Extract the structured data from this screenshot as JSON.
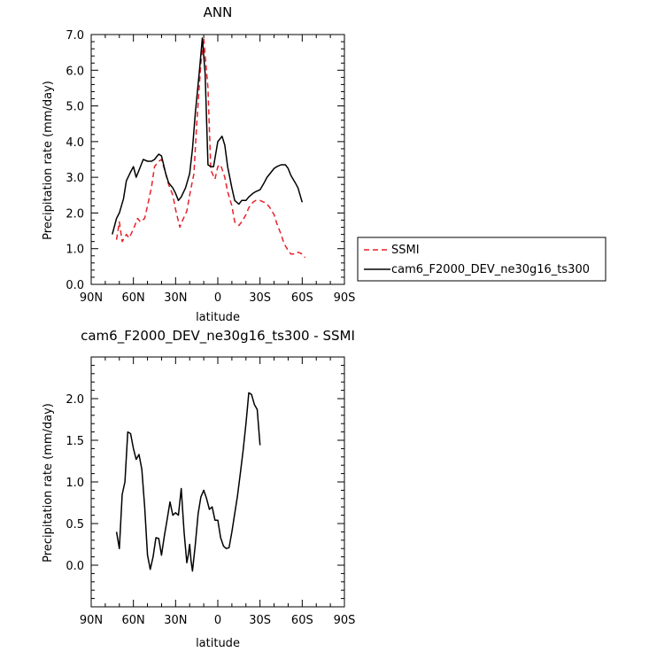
{
  "chart_data": [
    {
      "type": "line",
      "title": "ANN",
      "xlabel": "latitude",
      "ylabel": "Precipitation rate (mm/day)",
      "xlim": [
        90,
        -90
      ],
      "ylim": [
        0,
        7
      ],
      "x_ticks": [
        90,
        60,
        30,
        0,
        -30,
        -60,
        -90
      ],
      "x_tick_labels": [
        "90N",
        "60N",
        "30N",
        "0",
        "30S",
        "60S",
        "90S"
      ],
      "y_ticks": [
        0,
        1,
        2,
        3,
        4,
        5,
        6,
        7
      ],
      "y_tick_labels": [
        "0.0",
        "1.0",
        "2.0",
        "3.0",
        "4.0",
        "5.0",
        "6.0",
        "7.0"
      ],
      "grid": false,
      "legend_position": "right",
      "series": [
        {
          "name": "SSMI",
          "color": "#e8202a",
          "dash": "dashed",
          "points": [
            [
              72,
              1.25
            ],
            [
              70,
              1.75
            ],
            [
              68,
              1.2
            ],
            [
              65,
              1.4
            ],
            [
              63,
              1.3
            ],
            [
              60,
              1.55
            ],
            [
              57,
              1.85
            ],
            [
              55,
              1.75
            ],
            [
              52,
              1.85
            ],
            [
              50,
              2.2
            ],
            [
              47,
              2.75
            ],
            [
              45,
              3.3
            ],
            [
              42,
              3.45
            ],
            [
              40,
              3.5
            ],
            [
              37,
              3.1
            ],
            [
              35,
              2.8
            ],
            [
              32,
              2.5
            ],
            [
              30,
              2.1
            ],
            [
              27,
              1.6
            ],
            [
              25,
              1.8
            ],
            [
              22,
              2.05
            ],
            [
              20,
              2.5
            ],
            [
              17,
              3.1
            ],
            [
              15,
              4.5
            ],
            [
              12,
              6.2
            ],
            [
              10,
              6.9
            ],
            [
              7,
              5.5
            ],
            [
              5,
              3.2
            ],
            [
              2,
              2.95
            ],
            [
              0,
              3.3
            ],
            [
              -2,
              3.35
            ],
            [
              -5,
              3.0
            ],
            [
              -7,
              2.6
            ],
            [
              -10,
              2.2
            ],
            [
              -12,
              1.75
            ],
            [
              -15,
              1.65
            ],
            [
              -17,
              1.75
            ],
            [
              -20,
              1.95
            ],
            [
              -22,
              2.15
            ],
            [
              -25,
              2.3
            ],
            [
              -27,
              2.35
            ],
            [
              -30,
              2.35
            ],
            [
              -33,
              2.3
            ],
            [
              -35,
              2.25
            ],
            [
              -37,
              2.15
            ],
            [
              -40,
              1.95
            ],
            [
              -42,
              1.7
            ],
            [
              -45,
              1.4
            ],
            [
              -47,
              1.15
            ],
            [
              -50,
              0.95
            ],
            [
              -52,
              0.85
            ],
            [
              -55,
              0.85
            ],
            [
              -57,
              0.9
            ],
            [
              -60,
              0.85
            ],
            [
              -62,
              0.75
            ]
          ]
        },
        {
          "name": "cam6_F2000_DEV_ne30g16_ts300",
          "color": "#000000",
          "dash": "solid",
          "points": [
            [
              75,
              1.4
            ],
            [
              72,
              1.85
            ],
            [
              70,
              2.0
            ],
            [
              67,
              2.4
            ],
            [
              65,
              2.9
            ],
            [
              62,
              3.15
            ],
            [
              60,
              3.3
            ],
            [
              58,
              3.0
            ],
            [
              56,
              3.2
            ],
            [
              53,
              3.5
            ],
            [
              50,
              3.45
            ],
            [
              47,
              3.45
            ],
            [
              45,
              3.5
            ],
            [
              42,
              3.65
            ],
            [
              40,
              3.6
            ],
            [
              37,
              3.1
            ],
            [
              35,
              2.85
            ],
            [
              32,
              2.7
            ],
            [
              30,
              2.55
            ],
            [
              28,
              2.35
            ],
            [
              26,
              2.45
            ],
            [
              23,
              2.7
            ],
            [
              20,
              3.1
            ],
            [
              18,
              3.8
            ],
            [
              16,
              4.8
            ],
            [
              13,
              6.0
            ],
            [
              11,
              6.9
            ],
            [
              9,
              5.9
            ],
            [
              7,
              3.35
            ],
            [
              5,
              3.3
            ],
            [
              3,
              3.3
            ],
            [
              0,
              4.0
            ],
            [
              -3,
              4.15
            ],
            [
              -5,
              3.9
            ],
            [
              -7,
              3.3
            ],
            [
              -10,
              2.7
            ],
            [
              -12,
              2.35
            ],
            [
              -15,
              2.25
            ],
            [
              -17,
              2.35
            ],
            [
              -20,
              2.35
            ],
            [
              -22,
              2.45
            ],
            [
              -25,
              2.55
            ],
            [
              -27,
              2.6
            ],
            [
              -30,
              2.65
            ],
            [
              -33,
              2.85
            ],
            [
              -35,
              3.0
            ],
            [
              -38,
              3.15
            ],
            [
              -40,
              3.25
            ],
            [
              -42,
              3.3
            ],
            [
              -45,
              3.35
            ],
            [
              -48,
              3.35
            ],
            [
              -50,
              3.25
            ],
            [
              -52,
              3.05
            ],
            [
              -55,
              2.85
            ],
            [
              -57,
              2.7
            ],
            [
              -60,
              2.3
            ]
          ]
        }
      ]
    },
    {
      "type": "line",
      "title": "cam6_F2000_DEV_ne30g16_ts300 - SSMI",
      "xlabel": "latitude",
      "ylabel": "Precipitation rate (mm/day)",
      "xlim": [
        90,
        -90
      ],
      "ylim": [
        -0.5,
        2.5
      ],
      "x_ticks": [
        90,
        60,
        30,
        0,
        -30,
        -60,
        -90
      ],
      "x_tick_labels": [
        "90N",
        "60N",
        "30N",
        "0",
        "30S",
        "60S",
        "90S"
      ],
      "y_ticks": [
        0,
        0.5,
        1,
        1.5,
        2
      ],
      "y_tick_labels": [
        "0.0",
        "0.5",
        "1.0",
        "1.5",
        "2.0"
      ],
      "grid": false,
      "series": [
        {
          "color": "#000000",
          "dash": "solid",
          "points": [
            [
              72,
              0.4
            ],
            [
              70,
              0.2
            ],
            [
              68,
              0.85
            ],
            [
              66,
              1.0
            ],
            [
              64,
              1.6
            ],
            [
              62,
              1.58
            ],
            [
              60,
              1.4
            ],
            [
              58,
              1.27
            ],
            [
              56,
              1.33
            ],
            [
              54,
              1.15
            ],
            [
              52,
              0.7
            ],
            [
              50,
              0.12
            ],
            [
              48,
              -0.05
            ],
            [
              46,
              0.1
            ],
            [
              44,
              0.33
            ],
            [
              42,
              0.32
            ],
            [
              40,
              0.12
            ],
            [
              38,
              0.35
            ],
            [
              36,
              0.55
            ],
            [
              34,
              0.76
            ],
            [
              32,
              0.6
            ],
            [
              30,
              0.63
            ],
            [
              28,
              0.6
            ],
            [
              26,
              0.92
            ],
            [
              24,
              0.4
            ],
            [
              22,
              0.03
            ],
            [
              21,
              0.12
            ],
            [
              20,
              0.25
            ],
            [
              19,
              0.05
            ],
            [
              18,
              -0.07
            ],
            [
              16,
              0.25
            ],
            [
              14,
              0.62
            ],
            [
              12,
              0.82
            ],
            [
              10,
              0.9
            ],
            [
              8,
              0.8
            ],
            [
              6,
              0.67
            ],
            [
              4,
              0.7
            ],
            [
              2,
              0.54
            ],
            [
              0,
              0.54
            ],
            [
              -2,
              0.33
            ],
            [
              -4,
              0.23
            ],
            [
              -6,
              0.2
            ],
            [
              -8,
              0.21
            ],
            [
              -10,
              0.4
            ],
            [
              -12,
              0.62
            ],
            [
              -14,
              0.83
            ],
            [
              -16,
              1.1
            ],
            [
              -18,
              1.38
            ],
            [
              -20,
              1.7
            ],
            [
              -22,
              2.07
            ],
            [
              -24,
              2.05
            ],
            [
              -26,
              1.93
            ],
            [
              -28,
              1.87
            ],
            [
              -30,
              1.44
            ]
          ]
        }
      ]
    }
  ]
}
